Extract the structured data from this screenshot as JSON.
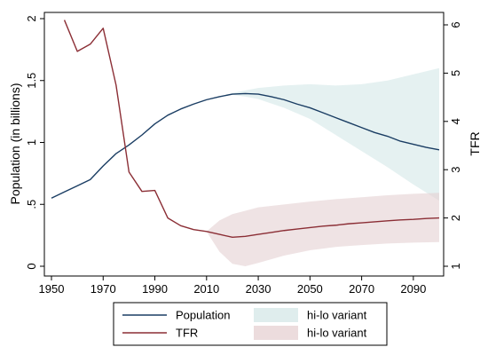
{
  "chart_data": {
    "type": "line",
    "title": "",
    "xlabel": "",
    "xlim": [
      1950,
      2100
    ],
    "x_ticks": [
      1950,
      1970,
      1990,
      2010,
      2030,
      2050,
      2070,
      2090
    ],
    "left_axis": {
      "label": "Population (in billions)",
      "ylim": [
        0,
        2
      ],
      "ticks": [
        {
          "value": 0,
          "label": "0"
        },
        {
          "value": 0.5,
          "label": ".5"
        },
        {
          "value": 1,
          "label": "1"
        },
        {
          "value": 1.5,
          "label": "1.5"
        },
        {
          "value": 2,
          "label": "2"
        }
      ]
    },
    "right_axis": {
      "label": "TFR",
      "ylim": [
        0.8,
        6.2
      ],
      "ticks": [
        {
          "value": 1,
          "label": "1"
        },
        {
          "value": 2,
          "label": "2"
        },
        {
          "value": 3,
          "label": "3"
        },
        {
          "value": 4,
          "label": "4"
        },
        {
          "value": 5,
          "label": "5"
        },
        {
          "value": 6,
          "label": "6"
        }
      ]
    },
    "series": [
      {
        "name": "Population",
        "axis": "left",
        "color": "#1a3d63",
        "x": [
          1950,
          1955,
          1960,
          1965,
          1970,
          1975,
          1980,
          1985,
          1990,
          1995,
          2000,
          2005,
          2010,
          2015,
          2020,
          2025,
          2030,
          2035,
          2040,
          2045,
          2050,
          2055,
          2060,
          2065,
          2070,
          2075,
          2080,
          2085,
          2090,
          2095,
          2100
        ],
        "y": [
          0.55,
          0.6,
          0.65,
          0.7,
          0.81,
          0.91,
          0.98,
          1.06,
          1.15,
          1.22,
          1.27,
          1.31,
          1.345,
          1.37,
          1.39,
          1.395,
          1.39,
          1.37,
          1.345,
          1.31,
          1.28,
          1.24,
          1.2,
          1.16,
          1.12,
          1.08,
          1.05,
          1.01,
          0.985,
          0.96,
          0.94
        ]
      },
      {
        "name": "TFR",
        "axis": "right",
        "color": "#8b2e35",
        "x": [
          1955,
          1960,
          1965,
          1970,
          1975,
          1980,
          1985,
          1990,
          1995,
          2000,
          2005,
          2010,
          2015,
          2020,
          2025,
          2030,
          2035,
          2040,
          2045,
          2050,
          2055,
          2060,
          2065,
          2070,
          2075,
          2080,
          2085,
          2090,
          2095,
          2100
        ],
        "y": [
          6.1,
          5.45,
          5.6,
          5.93,
          4.75,
          2.95,
          2.55,
          2.57,
          2.0,
          1.84,
          1.76,
          1.72,
          1.66,
          1.6,
          1.62,
          1.66,
          1.7,
          1.74,
          1.77,
          1.8,
          1.83,
          1.85,
          1.88,
          1.9,
          1.92,
          1.94,
          1.96,
          1.97,
          1.99,
          2.0
        ]
      }
    ],
    "bands": [
      {
        "name": "hi-lo variant",
        "axis": "left",
        "color": "#d4e7e7",
        "opacity": 0.6,
        "x": [
          2015,
          2020,
          2025,
          2030,
          2040,
          2050,
          2060,
          2070,
          2080,
          2090,
          2100
        ],
        "lower": [
          1.37,
          1.385,
          1.37,
          1.35,
          1.28,
          1.19,
          1.06,
          0.93,
          0.8,
          0.66,
          0.53
        ],
        "upper": [
          1.37,
          1.4,
          1.42,
          1.44,
          1.46,
          1.47,
          1.46,
          1.47,
          1.5,
          1.55,
          1.6
        ]
      },
      {
        "name": "hi-lo variant",
        "axis": "right",
        "color": "#e5d0d2",
        "opacity": 0.6,
        "x": [
          2010,
          2015,
          2020,
          2025,
          2030,
          2040,
          2050,
          2060,
          2070,
          2080,
          2090,
          2100
        ],
        "lower": [
          1.72,
          1.3,
          1.05,
          1.0,
          1.07,
          1.22,
          1.33,
          1.4,
          1.44,
          1.47,
          1.49,
          1.5
        ],
        "upper": [
          1.72,
          1.95,
          2.08,
          2.15,
          2.22,
          2.28,
          2.34,
          2.39,
          2.43,
          2.47,
          2.5,
          2.52
        ]
      }
    ],
    "grid": false,
    "legend": {
      "placement": "bottom",
      "entries": [
        {
          "label": "Population",
          "kind": "line",
          "series": 0
        },
        {
          "label": "hi-lo variant",
          "kind": "band",
          "band": 0
        },
        {
          "label": "TFR",
          "kind": "line",
          "series": 1
        },
        {
          "label": "hi-lo variant",
          "kind": "band",
          "band": 1
        }
      ]
    }
  }
}
